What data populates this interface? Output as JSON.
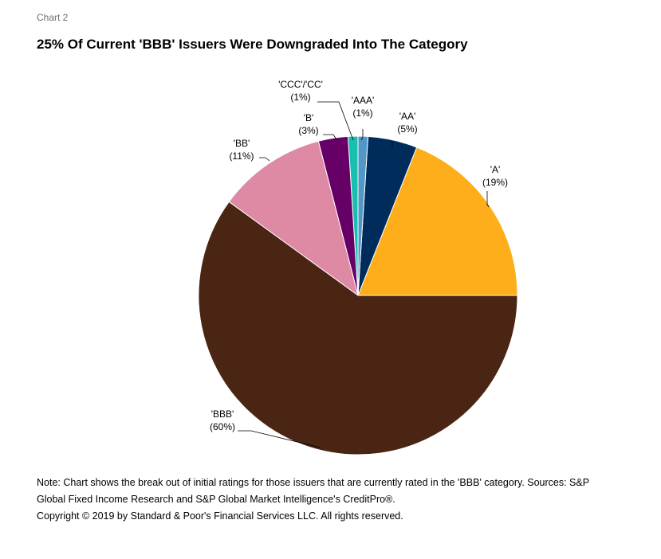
{
  "header": {
    "chart_label": "Chart 2",
    "title": "25% Of Current 'BBB' Issuers Were Downgraded Into The Category"
  },
  "chart_data": {
    "type": "pie",
    "title": "25% Of Current 'BBB' Issuers Were Downgraded Into The Category",
    "start_angle": "0 degrees at 3 o'clock, counterclockwise",
    "slices": [
      {
        "label": "'A'",
        "value": 19,
        "display": "(19%)",
        "color": "#FDAE1A"
      },
      {
        "label": "'AA'",
        "value": 5,
        "display": "(5%)",
        "color": "#002C5C"
      },
      {
        "label": "'AAA'",
        "value": 1,
        "display": "(1%)",
        "color": "#5298C6"
      },
      {
        "label": "'CCC'/'CC'",
        "value": 1,
        "display": "(1%)",
        "color": "#16BFAE"
      },
      {
        "label": "'B'",
        "value": 3,
        "display": "(3%)",
        "color": "#660066"
      },
      {
        "label": "'BB'",
        "value": 11,
        "display": "(11%)",
        "color": "#DE8AA4"
      },
      {
        "label": "'BBB'",
        "value": 60,
        "display": "(60%)",
        "color": "#4A2514"
      }
    ]
  },
  "footer": {
    "note": "Note: Chart shows the break out of initial ratings for those issuers that are currently rated in the 'BBB' category. Sources: S&P Global Fixed Income Research and S&P Global Market Intelligence's CreditPro®.",
    "copyright": "Copyright © 2019 by Standard & Poor's Financial Services LLC. All rights reserved."
  }
}
